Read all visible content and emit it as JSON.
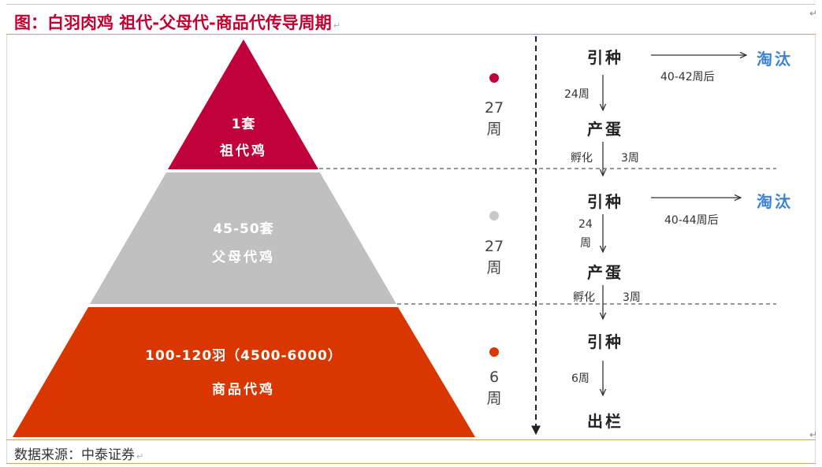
{
  "title": "图：白羽肉鸡 祖代-父母代-商品代传导周期",
  "source": "数据来源：中泰证券",
  "tiers": [
    {
      "line1": "1套",
      "line2": "祖代鸡",
      "color": "#c0003a",
      "dot_color": "#c0003a",
      "weeks_num": "27",
      "weeks_unit": "周"
    },
    {
      "line1": "45-50套",
      "line2": "父母代鸡",
      "color": "#c0c0c0",
      "dot_color": "#c8c8c8",
      "weeks_num": "27",
      "weeks_unit": "周"
    },
    {
      "line1": "100-120羽（4500-6000）",
      "line2": "商品代鸡",
      "color": "#d93600",
      "dot_color": "#d93600",
      "weeks_num": "6",
      "weeks_unit": "周"
    }
  ],
  "flow": {
    "stage1": {
      "intro": "引种",
      "cull": "淘汰",
      "cull_time": "40-42周后",
      "gap": "24周",
      "lay": "产蛋",
      "hatch": "孵化",
      "hatch_time": "3周"
    },
    "stage2": {
      "intro": "引种",
      "cull": "淘汰",
      "cull_time": "40-44周后",
      "gap_num": "24",
      "gap_unit": "周",
      "lay": "产蛋",
      "hatch": "孵化",
      "hatch_time": "3周"
    },
    "stage3": {
      "intro": "引种",
      "gap": "6周",
      "out": "出栏"
    }
  }
}
